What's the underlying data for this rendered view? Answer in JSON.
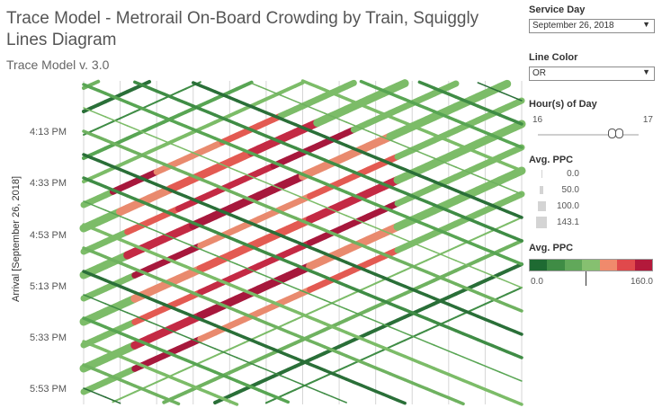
{
  "header": {
    "title": "Trace Model - Metrorail On-Board Crowding by Train, Squiggly Lines Diagram",
    "subtitle": "Trace Model v. 3.0"
  },
  "chart": {
    "y_axis_title": "Arrival [September 26, 2018]",
    "y_ticks": [
      "4:13 PM",
      "4:33 PM",
      "4:53 PM",
      "5:13 PM",
      "5:33 PM",
      "5:53 PM"
    ]
  },
  "filters": {
    "service_day": {
      "label": "Service Day",
      "value": "September 26, 2018"
    },
    "line_color": {
      "label": "Line Color",
      "value": "OR"
    },
    "hours": {
      "label": "Hour(s) of Day",
      "min": "16",
      "max": "17"
    }
  },
  "legend_size": {
    "title": "Avg. PPC",
    "items": [
      "0.0",
      "50.0",
      "100.0",
      "143.1"
    ]
  },
  "legend_color": {
    "title": "Avg. PPC",
    "min": "0.0",
    "max": "160.0",
    "colors": [
      "#1e6a32",
      "#3f8c45",
      "#61a85a",
      "#86c070",
      "#f08a6c",
      "#e0494c",
      "#b3193b"
    ]
  },
  "chart_data": {
    "type": "line",
    "y_axis": "arrival time",
    "color_scale": [
      "#2a7a3b",
      "#4a9a4d",
      "#7cbc68",
      "#e98a6e",
      "#e04b4b",
      "#a7183c"
    ],
    "series_note": ""
  }
}
